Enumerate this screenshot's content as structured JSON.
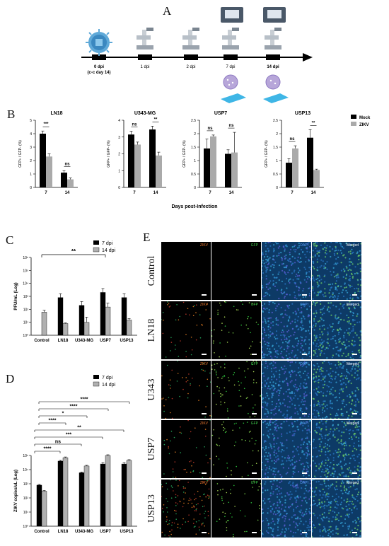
{
  "panel_a": {
    "letter": "A",
    "timeline": [
      {
        "label": "0 dpi",
        "sub": "(c-c day 14)",
        "bold": true
      },
      {
        "label": "1 dpi",
        "sub": "",
        "bold": false
      },
      {
        "label": "2 dpi",
        "sub": "",
        "bold": false
      },
      {
        "label": "7 dpi",
        "sub": "",
        "bold": false
      },
      {
        "label": "14 dpi",
        "sub": "",
        "bold": true
      }
    ]
  },
  "panel_b": {
    "letter": "B",
    "ylabel": "GFP+ / GFP- (%)",
    "xlabel": "Days post-Infection",
    "legend": [
      "Mock",
      "ZIKV"
    ]
  },
  "panel_c": {
    "letter": "C",
    "ylabel": "PFU/mL (Log)",
    "legend": [
      "7 dpi",
      "14 dpi"
    ]
  },
  "panel_d": {
    "letter": "D",
    "ylabel": "ZIKV copies/uL (Log)",
    "legend": [
      "7 dpi",
      "14 dpi"
    ]
  },
  "panel_e": {
    "letter": "E",
    "rows": [
      "Control",
      "LN18",
      "U343",
      "USP7",
      "USP13"
    ],
    "cols": [
      "ZIKV",
      "GFP",
      "DAPI",
      "Merged"
    ]
  },
  "colors": {
    "mock": "#000000",
    "zikv": "#aaaaaa",
    "dpi7": "#000000",
    "dpi14": "#b0b0b0"
  },
  "chart_data": [
    {
      "type": "bar",
      "title": "LN18",
      "xlabel": "",
      "ylabel": "GFP+ / GFP- (%)",
      "categories": [
        "7",
        "14"
      ],
      "ylim": [
        0,
        5
      ],
      "yticks": [
        0,
        1,
        2,
        3,
        4,
        5
      ],
      "series": [
        {
          "name": "Mock",
          "values": [
            4.0,
            1.1
          ]
        },
        {
          "name": "ZIKV",
          "values": [
            2.3,
            0.6
          ]
        }
      ],
      "errors": [
        [
          0.2,
          0.15
        ],
        [
          0.2,
          0.1
        ]
      ],
      "annotations": [
        "***",
        "ns"
      ]
    },
    {
      "type": "bar",
      "title": "U343-MG",
      "xlabel": "",
      "ylabel": "GFP+ / GFP- (%)",
      "categories": [
        "7",
        "14"
      ],
      "ylim": [
        0,
        4
      ],
      "yticks": [
        0,
        1,
        2,
        3,
        4
      ],
      "series": [
        {
          "name": "Mock",
          "values": [
            3.15,
            3.45
          ]
        },
        {
          "name": "ZIKV",
          "values": [
            2.55,
            1.9
          ]
        }
      ],
      "errors": [
        [
          0.2,
          0.2
        ],
        [
          0.15,
          0.2
        ]
      ],
      "annotations": [
        "ns",
        "**"
      ]
    },
    {
      "type": "bar",
      "title": "USP7",
      "xlabel": "",
      "ylabel": "GFP+ / GFP- (%)",
      "categories": [
        "7",
        "14"
      ],
      "ylim": [
        0,
        2.5
      ],
      "yticks": [
        0.0,
        0.5,
        1.0,
        1.5,
        2.0,
        2.5
      ],
      "series": [
        {
          "name": "Mock",
          "values": [
            1.45,
            1.25
          ]
        },
        {
          "name": "ZIKV",
          "values": [
            1.9,
            1.3
          ]
        }
      ],
      "errors": [
        [
          0.35,
          0.15
        ],
        [
          0.05,
          0.75
        ]
      ],
      "annotations": [
        "ns",
        "ns"
      ]
    },
    {
      "type": "bar",
      "title": "USP13",
      "xlabel": "",
      "ylabel": "GFP+ / GFP- (%)",
      "categories": [
        "7",
        "14"
      ],
      "ylim": [
        0,
        2.5
      ],
      "yticks": [
        0.0,
        0.5,
        1.0,
        1.5,
        2.0,
        2.5
      ],
      "series": [
        {
          "name": "Mock",
          "values": [
            0.92,
            1.85
          ]
        },
        {
          "name": "ZIKV",
          "values": [
            1.45,
            0.65
          ]
        }
      ],
      "errors": [
        [
          0.15,
          0.3
        ],
        [
          0.1,
          0.03
        ]
      ],
      "annotations": [
        "ns",
        "**"
      ]
    },
    {
      "type": "bar",
      "title": "",
      "xlabel": "",
      "ylabel": "PFU/mL (Log)",
      "categories": [
        "Control",
        "LN18",
        "U343-MG",
        "USP7",
        "USP13"
      ],
      "y_scale": "log",
      "ylim": [
        1,
        1000000
      ],
      "yticks_labels": [
        "10⁰",
        "10¹",
        "10²",
        "10³",
        "10⁴",
        "10⁵",
        "10⁶"
      ],
      "series": [
        {
          "name": "7 dpi",
          "values": [
            null,
            800,
            200,
            2000,
            800
          ]
        },
        {
          "name": "14 dpi",
          "values": [
            60,
            8,
            10,
            150,
            15
          ]
        }
      ],
      "errors": [
        [
          0,
          0.3,
          0.3,
          0.3,
          0.3
        ],
        [
          0.15,
          0.05,
          0.4,
          0.3,
          0.1
        ]
      ],
      "annotations": [
        {
          "from": "Control",
          "to": "USP7",
          "label": "**"
        }
      ]
    },
    {
      "type": "bar",
      "title": "",
      "xlabel": "",
      "ylabel": "ZIKV copies/uL (Log)",
      "categories": [
        "Control",
        "LN18",
        "U343-MG",
        "USP7",
        "USP13"
      ],
      "y_scale": "log",
      "ylim": [
        1,
        100000
      ],
      "yticks_labels": [
        "10⁰",
        "10¹",
        "10²",
        "10³",
        "10⁴",
        "10⁵"
      ],
      "series": [
        {
          "name": "7 dpi",
          "values": [
            800,
            40000,
            6000,
            25000,
            25000
          ]
        },
        {
          "name": "14 dpi",
          "values": [
            300,
            70000,
            18000,
            100000,
            45000
          ]
        }
      ],
      "errors": [
        [
          0.05,
          0.05,
          0.05,
          0.1,
          0.1
        ],
        [
          0.05,
          0.05,
          0.05,
          0.05,
          0.05
        ]
      ],
      "annotations": [
        {
          "label": "****"
        },
        {
          "label": "****"
        },
        {
          "label": "*"
        },
        {
          "label": "****"
        },
        {
          "label": "**"
        },
        {
          "label": "***"
        },
        {
          "label": "ns"
        },
        {
          "label": "****"
        }
      ]
    }
  ]
}
